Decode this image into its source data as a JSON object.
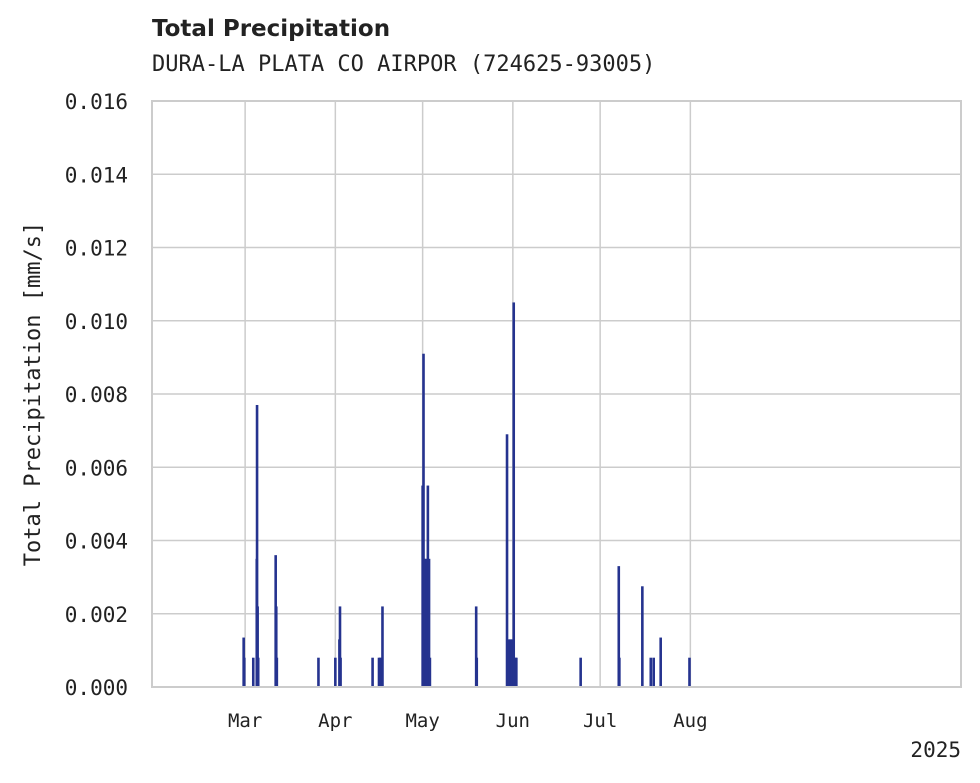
{
  "chart_data": {
    "type": "bar",
    "title": "Total Precipitation",
    "subtitle": "DURA-LA PLATA CO AIRPOR (724625-93005)",
    "xlabel": "",
    "ylabel": "Total Precipitation [mm/s]",
    "ylim": [
      0,
      0.016
    ],
    "yticks": [
      "0.000",
      "0.002",
      "0.004",
      "0.006",
      "0.008",
      "0.010",
      "0.012",
      "0.014",
      "0.016"
    ],
    "xlim_days": [
      -4,
      274
    ],
    "x_unit": "days since 2025-02-01",
    "xticks": [
      {
        "label": "Mar",
        "day": 28
      },
      {
        "label": "Apr",
        "day": 59
      },
      {
        "label": "May",
        "day": 89
      },
      {
        "label": "Jun",
        "day": 120
      },
      {
        "label": "Jul",
        "day": 150
      },
      {
        "label": "Aug",
        "day": 181
      }
    ],
    "year_label": "2025",
    "grid": true,
    "color": "#25338f",
    "x": [
      27.5,
      27.7,
      30.8,
      32.0,
      32.1,
      32.3,
      32.5,
      38.5,
      38.7,
      38.9,
      53.2,
      59.0,
      60.4,
      60.6,
      60.8,
      71.8,
      74.0,
      74.4,
      75.0,
      75.2,
      89.0,
      89.3,
      89.5,
      89.8,
      90.2,
      90.5,
      90.8,
      91.2,
      91.5,
      107.4,
      107.6,
      118.0,
      118.6,
      119.2,
      119.6,
      120.3,
      120.9,
      121.2,
      143.3,
      156.4,
      156.6,
      164.5,
      167.4,
      168.4,
      170.8,
      180.7
    ],
    "values": [
      0.00135,
      0.0008,
      0.0008,
      0.0035,
      0.0077,
      0.0022,
      0.0008,
      0.0036,
      0.0022,
      0.0008,
      0.0008,
      0.0008,
      0.0013,
      0.0022,
      0.0008,
      0.0008,
      0.0008,
      0.0008,
      0.0008,
      0.0022,
      0.0055,
      0.0091,
      0.0035,
      0.0035,
      0.0013,
      0.0035,
      0.0055,
      0.0035,
      0.0008,
      0.0022,
      0.0008,
      0.0069,
      0.0013,
      0.0013,
      0.0013,
      0.0105,
      0.0008,
      0.0008,
      0.0008,
      0.0033,
      0.0008,
      0.00275,
      0.0008,
      0.0008,
      0.00135,
      0.0008
    ]
  }
}
